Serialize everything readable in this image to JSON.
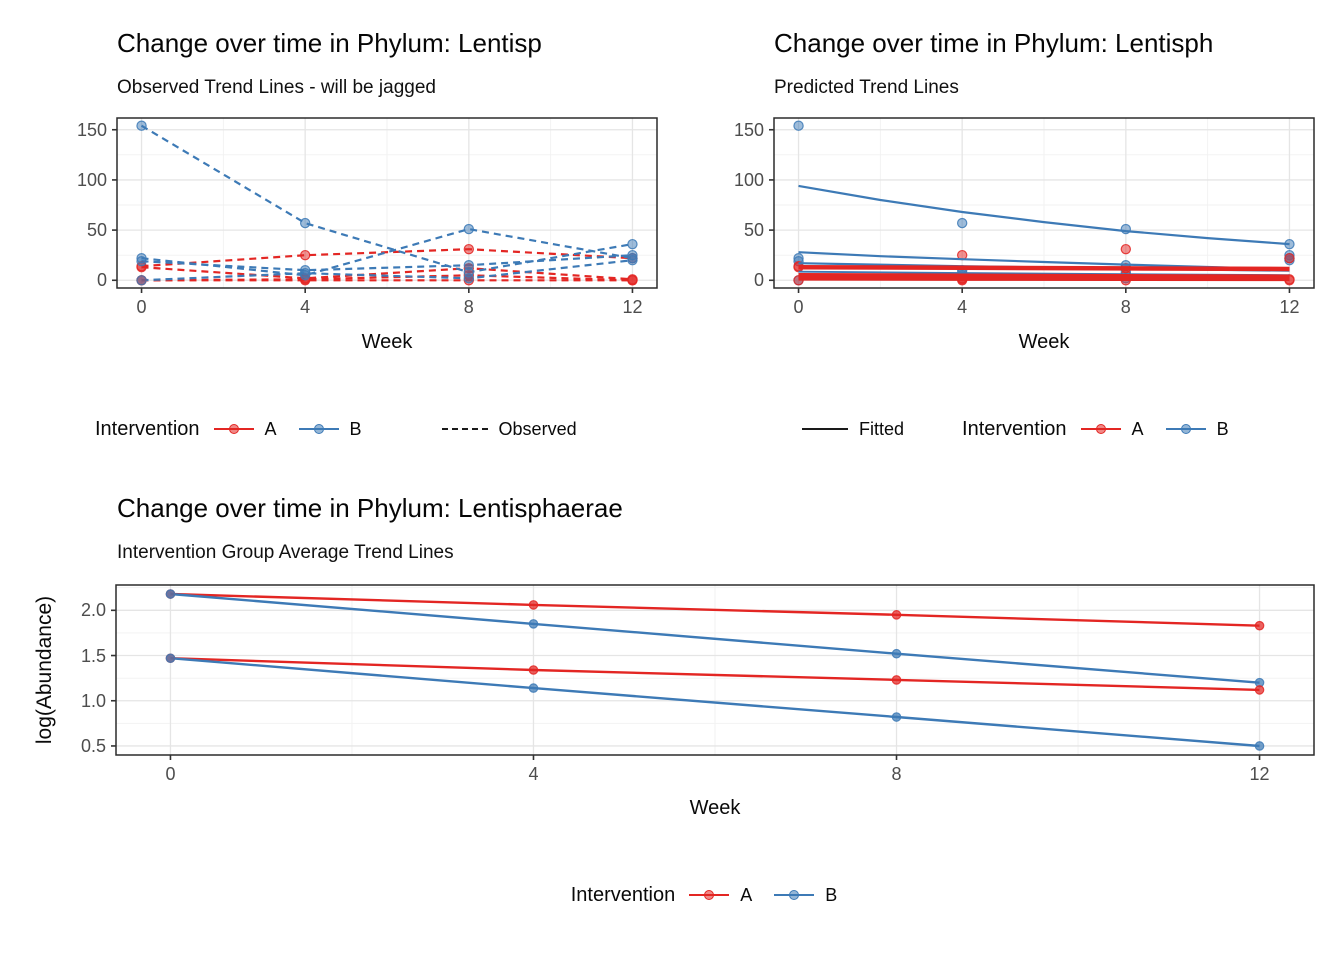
{
  "colors": {
    "red": "#E32623",
    "blue": "#3D7AB6",
    "key_black": "#1a1a1a",
    "axis_text": "#4D4D4D",
    "title_text": "#060606",
    "grid_major": "#E5E5E5",
    "grid_minor": "#F1F1F1",
    "panel_border": "#2B2B2B",
    "tick_mark": "#333333"
  },
  "panel1": {
    "title": "Change over time in Phylum: Lentisp",
    "subtitle": "Observed Trend Lines - will be jagged",
    "xlabel": "Week",
    "legend": {
      "title": "Intervention",
      "a": "A",
      "b": "B",
      "linetype_label": "Observed"
    }
  },
  "panel2": {
    "title": "Change over time in Phylum: Lentisph",
    "subtitle": "Predicted Trend Lines",
    "xlabel": "Week",
    "legend": {
      "title": "Intervention",
      "a": "A",
      "b": "B",
      "linetype_label": "Fitted"
    }
  },
  "panel3": {
    "title": "Change over time in Phylum: Lentisphaerae",
    "subtitle": "Intervention Group Average Trend Lines",
    "xlabel": "Week",
    "ylabel": "log(Abundance)",
    "legend": {
      "title": "Intervention",
      "a": "A",
      "b": "B"
    }
  },
  "chart_data": [
    {
      "type": "line",
      "panel": "observed",
      "title": "Change over time in Phylum: Lentisp",
      "subtitle": "Observed Trend Lines - will be jagged",
      "xlabel": "Week",
      "ylabel": "",
      "linestyle": "dashed",
      "x": [
        0,
        4,
        8,
        12
      ],
      "xticks": [
        0,
        4,
        8,
        12
      ],
      "xtick_labels": [
        "0",
        "4",
        "8",
        "12"
      ],
      "xminor": [
        2,
        6,
        10
      ],
      "yticks": [
        0,
        50,
        100,
        150
      ],
      "ytick_labels": [
        "0",
        "50",
        "100",
        "150"
      ],
      "yminor": [
        25,
        75,
        125
      ],
      "xlim": [
        -0.6,
        12.6
      ],
      "ylim": [
        -7.7,
        161.7
      ],
      "legend": [
        "Intervention: A (red), B (blue)",
        "linetype: Observed (dashed)"
      ],
      "series": [
        {
          "name": "A-subject-1",
          "group": "A",
          "values": [
            14,
            25,
            31,
            22
          ]
        },
        {
          "name": "A-subject-2",
          "group": "A",
          "values": [
            13,
            2,
            12,
            1
          ]
        },
        {
          "name": "A-subject-3",
          "group": "A",
          "values": [
            0,
            1,
            5,
            0
          ]
        },
        {
          "name": "A-subject-4",
          "group": "A",
          "values": [
            0,
            0,
            0,
            0
          ]
        },
        {
          "name": "B-subject-1",
          "group": "B",
          "values": [
            154,
            57,
            8,
            36
          ]
        },
        {
          "name": "B-subject-2",
          "group": "B",
          "values": [
            22,
            5,
            51,
            22
          ]
        },
        {
          "name": "B-subject-3",
          "group": "B",
          "values": [
            19,
            10,
            15,
            25
          ]
        },
        {
          "name": "B-subject-4",
          "group": "B",
          "values": [
            0,
            7,
            2,
            20
          ]
        }
      ]
    },
    {
      "type": "line+scatter",
      "panel": "predicted",
      "title": "Change over time in Phylum: Lentisph",
      "subtitle": "Predicted Trend Lines",
      "xlabel": "Week",
      "ylabel": "",
      "xticks": [
        0,
        4,
        8,
        12
      ],
      "xtick_labels": [
        "0",
        "4",
        "8",
        "12"
      ],
      "xminor": [
        2,
        6,
        10
      ],
      "yticks": [
        0,
        50,
        100,
        150
      ],
      "ytick_labels": [
        "0",
        "50",
        "100",
        "150"
      ],
      "yminor": [
        25,
        75,
        125
      ],
      "xlim": [
        -0.6,
        12.6
      ],
      "ylim": [
        -7.7,
        161.7
      ],
      "legend": [
        "linetype: Fitted (solid)",
        "Intervention: A (red), B (blue)"
      ],
      "points": [
        {
          "x": 0,
          "y": 154,
          "group": "B"
        },
        {
          "x": 0,
          "y": 22,
          "group": "B"
        },
        {
          "x": 0,
          "y": 19,
          "group": "B"
        },
        {
          "x": 0,
          "y": 0,
          "group": "B"
        },
        {
          "x": 0,
          "y": 14,
          "group": "A"
        },
        {
          "x": 0,
          "y": 13,
          "group": "A"
        },
        {
          "x": 0,
          "y": 0,
          "group": "A"
        },
        {
          "x": 4,
          "y": 57,
          "group": "B"
        },
        {
          "x": 4,
          "y": 10,
          "group": "B"
        },
        {
          "x": 4,
          "y": 7,
          "group": "B"
        },
        {
          "x": 4,
          "y": 5,
          "group": "B"
        },
        {
          "x": 4,
          "y": 25,
          "group": "A"
        },
        {
          "x": 4,
          "y": 2,
          "group": "A"
        },
        {
          "x": 4,
          "y": 1,
          "group": "A"
        },
        {
          "x": 4,
          "y": 0,
          "group": "A"
        },
        {
          "x": 8,
          "y": 51,
          "group": "B"
        },
        {
          "x": 8,
          "y": 15,
          "group": "B"
        },
        {
          "x": 8,
          "y": 8,
          "group": "B"
        },
        {
          "x": 8,
          "y": 2,
          "group": "B"
        },
        {
          "x": 8,
          "y": 31,
          "group": "A"
        },
        {
          "x": 8,
          "y": 12,
          "group": "A"
        },
        {
          "x": 8,
          "y": 5,
          "group": "A"
        },
        {
          "x": 8,
          "y": 0,
          "group": "A"
        },
        {
          "x": 12,
          "y": 36,
          "group": "B"
        },
        {
          "x": 12,
          "y": 25,
          "group": "B"
        },
        {
          "x": 12,
          "y": 22,
          "group": "B"
        },
        {
          "x": 12,
          "y": 20,
          "group": "B"
        },
        {
          "x": 12,
          "y": 22,
          "group": "A"
        },
        {
          "x": 12,
          "y": 1,
          "group": "A"
        },
        {
          "x": 12,
          "y": 0,
          "group": "A"
        }
      ],
      "fitted": [
        {
          "name": "B-fit-1",
          "group": "B",
          "width": 2.2,
          "x": [
            0,
            2,
            4,
            6,
            8,
            10,
            12
          ],
          "values": [
            94,
            80,
            68,
            58,
            49,
            42,
            36
          ]
        },
        {
          "name": "B-fit-2",
          "group": "B",
          "width": 2.2,
          "x": [
            0,
            2,
            4,
            6,
            8,
            10,
            12
          ],
          "values": [
            28,
            24,
            21,
            18.2,
            15.6,
            13.2,
            11
          ]
        },
        {
          "name": "B-fit-3",
          "group": "B",
          "width": 2.2,
          "x": [
            0,
            4,
            8,
            12
          ],
          "values": [
            17,
            14,
            11.5,
            9.5
          ]
        },
        {
          "name": "B-fit-4",
          "group": "B",
          "width": 1.8,
          "x": [
            0,
            4,
            8,
            12
          ],
          "values": [
            8.5,
            7.2,
            6.1,
            5.2
          ]
        },
        {
          "name": "A-fit-1",
          "group": "A",
          "width": 4.5,
          "x": [
            0,
            4,
            8,
            12
          ],
          "values": [
            13,
            12.4,
            11.8,
            11.2
          ]
        },
        {
          "name": "A-fit-2",
          "group": "A",
          "width": 5.5,
          "x": [
            0,
            4,
            8,
            12
          ],
          "values": [
            4.6,
            4.0,
            3.5,
            3.1
          ]
        },
        {
          "name": "A-fit-3",
          "group": "A",
          "width": 3.5,
          "x": [
            0,
            4,
            8,
            12
          ],
          "values": [
            1.4,
            1.2,
            1.0,
            0.9
          ]
        }
      ]
    },
    {
      "type": "line",
      "panel": "group-average",
      "title": "Change over time in Phylum: Lentisphaerae",
      "subtitle": "Intervention Group Average Trend Lines",
      "xlabel": "Week",
      "ylabel": "log(Abundance)",
      "linestyle": "solid",
      "x": [
        0,
        4,
        8,
        12
      ],
      "xticks": [
        0,
        4,
        8,
        12
      ],
      "xtick_labels": [
        "0",
        "4",
        "8",
        "12"
      ],
      "xminor": [
        2,
        6,
        10
      ],
      "yticks": [
        0.5,
        1.0,
        1.5,
        2.0
      ],
      "ytick_labels": [
        "0.5",
        "1.0",
        "1.5",
        "2.0"
      ],
      "yminor": [
        0.75,
        1.25,
        1.75,
        2.25
      ],
      "xlim": [
        -0.6,
        12.6
      ],
      "ylim": [
        0.4,
        2.28
      ],
      "legend": [
        "Intervention: A (red), B (blue)"
      ],
      "series": [
        {
          "name": "A-average-upper",
          "group": "A",
          "values": [
            2.18,
            2.06,
            1.95,
            1.83
          ]
        },
        {
          "name": "B-average-upper",
          "group": "B",
          "values": [
            2.18,
            1.85,
            1.52,
            1.2
          ]
        },
        {
          "name": "A-average-lower",
          "group": "A",
          "values": [
            1.47,
            1.34,
            1.23,
            1.12
          ]
        },
        {
          "name": "B-average-lower",
          "group": "B",
          "values": [
            1.47,
            1.14,
            0.82,
            0.5
          ]
        }
      ]
    }
  ]
}
